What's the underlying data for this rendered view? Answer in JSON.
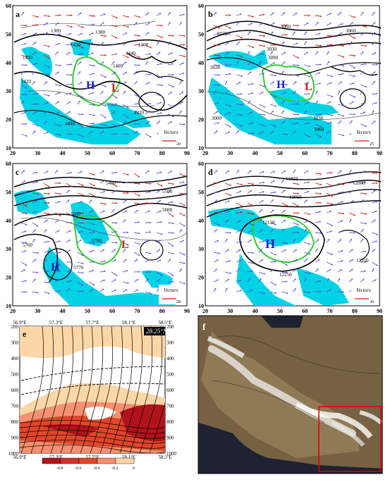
{
  "map_panels": {
    "lat_ticks": [
      "10",
      "20",
      "30",
      "40",
      "50",
      "60"
    ],
    "lon_ticks": [
      "20",
      "30",
      "40",
      "50",
      "60",
      "70",
      "80",
      "90"
    ],
    "a": {
      "label": "a",
      "H": "H",
      "L": "L",
      "vectors": "Vectors",
      "scale": "20",
      "contours": [
        "1300",
        "1380",
        "1400",
        "1420",
        "1440",
        "1420",
        "1400",
        "1420",
        "1440",
        "1420"
      ]
    },
    "b": {
      "label": "b",
      "H": "H",
      "L": "L",
      "vectors": "Vectors",
      "scale": "25",
      "contours": [
        "3030",
        "3060",
        "3060",
        "3030",
        "3030",
        "3000",
        "3090",
        "3030",
        "3060"
      ]
    },
    "c": {
      "label": "c",
      "H": "H",
      "L": "L",
      "vectors": "Vectors",
      "scale": "28",
      "contours": [
        "5400",
        "5500",
        "5600",
        "5680",
        "5760",
        "5700",
        "5770"
      ]
    },
    "d": {
      "label": "d",
      "H": "H",
      "vectors": "Vectors",
      "scale": "30",
      "contours": [
        "11850",
        "12000",
        "12050",
        "12150",
        "12250",
        "12250"
      ]
    }
  },
  "section_e": {
    "label": "e",
    "latitude": "28.25°N",
    "top_ticks": [
      "56.9°E",
      "57.3°E",
      "57.7°E",
      "58.1°E",
      "58.5°E"
    ],
    "bottom_ticks": [
      "56.9°E",
      "57.3°E",
      "57.7°E",
      "58.1°E",
      "58.5°E"
    ],
    "pressure_levels": [
      "200",
      "300",
      "400",
      "500",
      "600",
      "700",
      "800",
      "900",
      "1000"
    ],
    "colorbar_labels": [
      "-0.8",
      "-0.6",
      "-0.4",
      "-0.2",
      "0"
    ]
  },
  "satellite_f": {
    "label": "f"
  },
  "colors": {
    "cyan": "#00d2e6",
    "green": "#33cc33",
    "vector": "#5a4fd6",
    "red_arrow": "#d41818",
    "dark_red": "#b1131a",
    "mid_red": "#e2452a",
    "light_red": "#f59070",
    "pale": "#fbd6a7",
    "blue_H": "#1a22cc"
  }
}
